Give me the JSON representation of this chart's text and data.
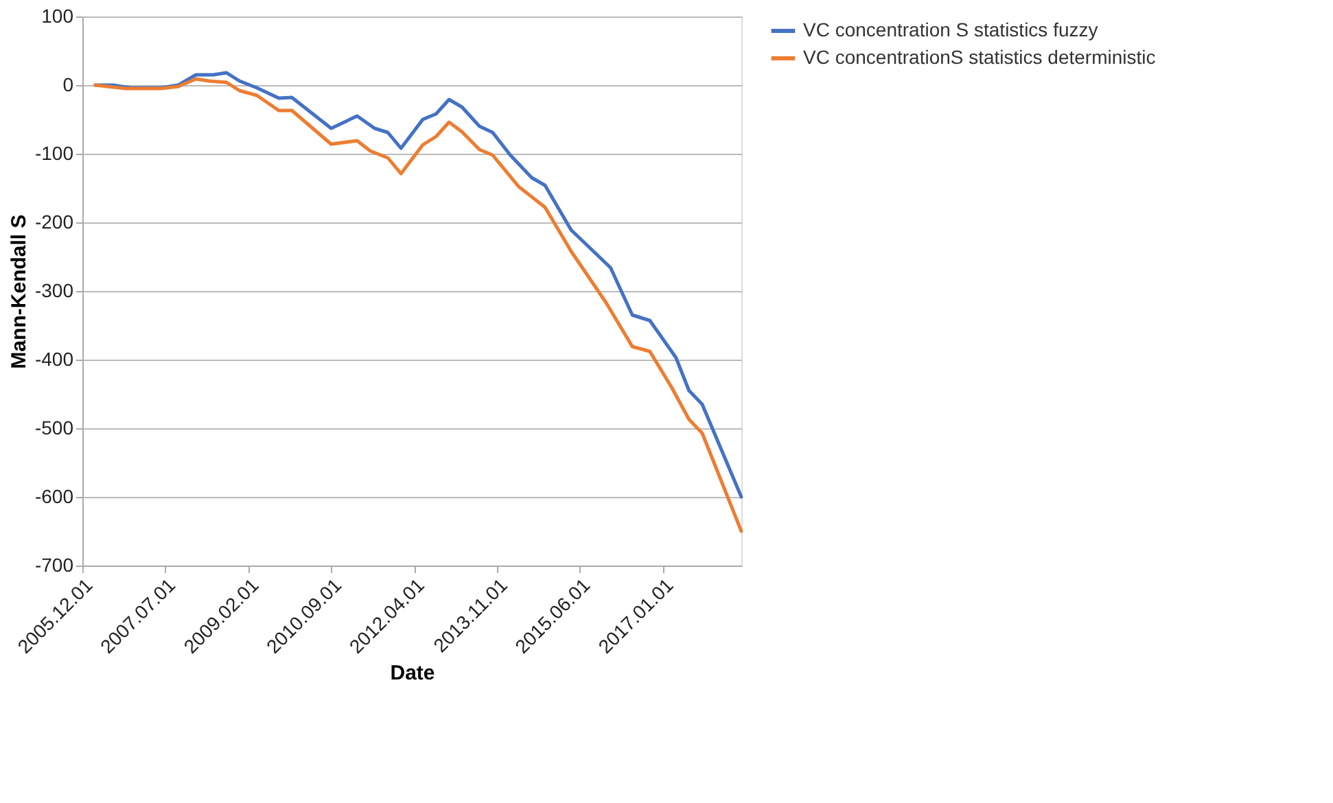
{
  "chart_data": {
    "type": "line",
    "xlabel": "Date",
    "ylabel": "Mann-Kendall S",
    "xlim": [
      "2005-12-01",
      "2018-07-01"
    ],
    "xticks": [
      {
        "value": "2005-12-01",
        "label": "2005.12.01"
      },
      {
        "value": "2007-07-01",
        "label": "2007.07.01"
      },
      {
        "value": "2009-02-01",
        "label": "2009.02.01"
      },
      {
        "value": "2010-09-01",
        "label": "2010.09.01"
      },
      {
        "value": "2012-04-01",
        "label": "2012.04.01"
      },
      {
        "value": "2013-11-01",
        "label": "2013.11.01"
      },
      {
        "value": "2015-06-01",
        "label": "2015.06.01"
      },
      {
        "value": "2017-01-01",
        "label": "2017.01.01"
      }
    ],
    "ylim": [
      -700,
      100
    ],
    "yticks": [
      -700,
      -600,
      -500,
      -400,
      -300,
      -200,
      -100,
      0,
      100
    ],
    "grid": "y",
    "legend": "right",
    "marker": "none",
    "line_style": "solid",
    "series": [
      {
        "name": "VC concentration  S statistics fuzzy",
        "color": "#4472c4",
        "x": [
          "2006-03",
          "2006-07",
          "2006-11",
          "2007-06",
          "2007-10",
          "2008-02",
          "2008-06",
          "2008-09",
          "2008-12",
          "2009-04",
          "2009-09",
          "2009-12",
          "2010-09",
          "2011-03",
          "2011-07",
          "2011-10",
          "2012-01",
          "2012-06",
          "2012-09",
          "2012-12",
          "2013-03",
          "2013-07",
          "2013-10",
          "2014-02",
          "2014-07",
          "2014-10",
          "2015-04",
          "2016-01",
          "2016-06",
          "2016-10",
          "2017-04",
          "2017-07",
          "2017-10",
          "2018-07"
        ],
        "values": [
          0,
          0,
          -4,
          -4,
          0,
          15,
          15,
          18,
          6,
          -4,
          -19,
          -18,
          -63,
          -45,
          -63,
          -69,
          -92,
          -50,
          -42,
          -21,
          -32,
          -60,
          -69,
          -102,
          -135,
          -146,
          -211,
          -266,
          -335,
          -343,
          -397,
          -445,
          -465,
          -600
        ]
      },
      {
        "name": "VC concentrationS statistics deterministic",
        "color": "#ed7d31",
        "x": [
          "2006-03",
          "2006-10",
          "2007-06",
          "2007-10",
          "2008-02",
          "2008-05",
          "2008-09",
          "2008-12",
          "2009-04",
          "2009-09",
          "2009-12",
          "2010-09",
          "2011-03",
          "2011-06",
          "2011-10",
          "2012-01",
          "2012-06",
          "2012-09",
          "2012-12",
          "2013-03",
          "2013-07",
          "2013-10",
          "2014-04",
          "2014-10",
          "2015-04",
          "2015-12",
          "2016-06",
          "2016-10",
          "2017-03",
          "2017-07",
          "2017-10",
          "2018-07"
        ],
        "values": [
          0,
          -5,
          -5,
          -2,
          9,
          6,
          4,
          -8,
          -15,
          -37,
          -37,
          -86,
          -81,
          -96,
          -106,
          -129,
          -87,
          -75,
          -54,
          -68,
          -94,
          -102,
          -148,
          -178,
          -242,
          -317,
          -381,
          -388,
          -440,
          -487,
          -507,
          -650
        ]
      }
    ]
  }
}
